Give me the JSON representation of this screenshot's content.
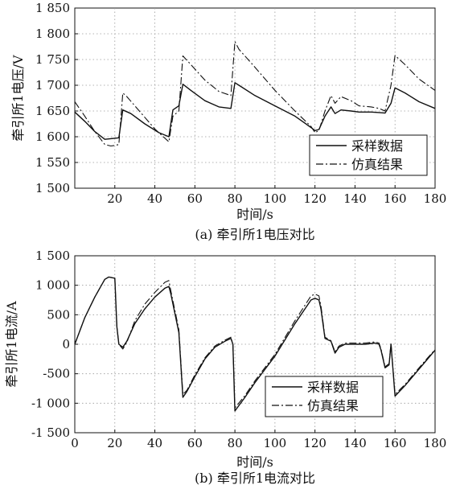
{
  "chart_data": [
    {
      "type": "line",
      "caption": "(a) 牵引所1电压对比",
      "xlabel": "时间/s",
      "ylabel": "牵引所1电压/V",
      "xlim": [
        0,
        180
      ],
      "ylim": [
        1500,
        1850
      ],
      "xticks": [
        "20",
        "40",
        "60",
        "80",
        "100",
        "120",
        "140",
        "160",
        "180"
      ],
      "xtick_values": [
        20,
        40,
        60,
        80,
        100,
        120,
        140,
        160,
        180
      ],
      "yticks": [
        "1 500",
        "1 550",
        "1 600",
        "1 650",
        "1 700",
        "1 750",
        "1 800",
        "1 850"
      ],
      "ytick_values": [
        1500,
        1550,
        1600,
        1650,
        1700,
        1750,
        1800,
        1850
      ],
      "grid": true,
      "legend_position": "bottom-right",
      "series": [
        {
          "name": "采样数据",
          "style": "solid",
          "x": [
            0,
            5,
            10,
            15,
            20,
            22,
            24,
            28,
            35,
            42,
            47,
            49,
            52,
            54,
            58,
            65,
            72,
            78,
            80,
            82,
            90,
            100,
            110,
            118,
            120,
            122,
            125,
            128,
            130,
            133,
            138,
            142,
            148,
            152,
            155,
            158,
            160,
            165,
            172,
            180
          ],
          "y": [
            1648,
            1630,
            1610,
            1595,
            1597,
            1598,
            1652,
            1645,
            1625,
            1608,
            1600,
            1652,
            1660,
            1702,
            1690,
            1670,
            1658,
            1655,
            1705,
            1700,
            1680,
            1660,
            1640,
            1618,
            1612,
            1614,
            1640,
            1658,
            1645,
            1652,
            1650,
            1648,
            1648,
            1647,
            1646,
            1665,
            1695,
            1685,
            1668,
            1655
          ]
        },
        {
          "name": "仿真结果",
          "style": "dashdot",
          "x": [
            0,
            5,
            10,
            15,
            18,
            20,
            22,
            24,
            26,
            30,
            40,
            47,
            49,
            52,
            54,
            58,
            65,
            72,
            78,
            80,
            82,
            90,
            100,
            110,
            118,
            120,
            122,
            125,
            128,
            130,
            133,
            138,
            142,
            148,
            152,
            155,
            158,
            160,
            165,
            172,
            180
          ],
          "y": [
            1668,
            1640,
            1610,
            1585,
            1582,
            1583,
            1585,
            1685,
            1678,
            1660,
            1615,
            1590,
            1640,
            1650,
            1757,
            1740,
            1710,
            1688,
            1680,
            1785,
            1770,
            1735,
            1690,
            1650,
            1620,
            1608,
            1612,
            1650,
            1680,
            1665,
            1678,
            1670,
            1660,
            1658,
            1655,
            1650,
            1700,
            1758,
            1740,
            1712,
            1690
          ]
        }
      ]
    },
    {
      "type": "line",
      "caption": "(b) 牵引所1电流对比",
      "xlabel": "时间/s",
      "ylabel": "牵引所1电流/A",
      "xlim": [
        0,
        180
      ],
      "ylim": [
        -1500,
        1500
      ],
      "xticks": [
        "0",
        "20",
        "40",
        "60",
        "80",
        "100",
        "120",
        "140",
        "160",
        "180"
      ],
      "xtick_values": [
        0,
        20,
        40,
        60,
        80,
        100,
        120,
        140,
        160,
        180
      ],
      "yticks": [
        "-1 500",
        "-1 000",
        "-500",
        "0",
        "500",
        "1 000",
        "1 500"
      ],
      "ytick_values": [
        -1500,
        -1000,
        -500,
        0,
        500,
        1000,
        1500
      ],
      "grid": true,
      "legend_position": "bottom-right",
      "series": [
        {
          "name": "采样数据",
          "style": "solid",
          "x": [
            0,
            5,
            10,
            15,
            17,
            20,
            21,
            22,
            24,
            26,
            30,
            35,
            40,
            45,
            47,
            48,
            52,
            54,
            56,
            60,
            65,
            70,
            75,
            78,
            79,
            80,
            85,
            90,
            100,
            110,
            118,
            120,
            122,
            123,
            125,
            128,
            130,
            132,
            135,
            140,
            145,
            150,
            152,
            153,
            155,
            157,
            158,
            160,
            165,
            170,
            175,
            180
          ],
          "y": [
            0,
            450,
            800,
            1100,
            1140,
            1120,
            300,
            0,
            -50,
            50,
            350,
            600,
            800,
            950,
            980,
            850,
            200,
            -900,
            -800,
            -550,
            -250,
            -50,
            50,
            100,
            0,
            -1130,
            -900,
            -650,
            -200,
            350,
            750,
            780,
            750,
            600,
            100,
            50,
            -150,
            -50,
            0,
            0,
            0,
            20,
            0,
            -100,
            -400,
            -350,
            0,
            -880,
            -700,
            -500,
            -300,
            -100
          ]
        },
        {
          "name": "仿真结果",
          "style": "dashdot",
          "x": [
            0,
            5,
            10,
            15,
            17,
            20,
            21,
            22,
            24,
            26,
            30,
            35,
            40,
            45,
            47,
            48,
            52,
            54,
            56,
            60,
            65,
            70,
            75,
            78,
            79,
            80,
            85,
            90,
            100,
            110,
            118,
            120,
            122,
            123,
            125,
            128,
            130,
            132,
            135,
            140,
            145,
            150,
            152,
            153,
            155,
            157,
            158,
            160,
            165,
            170,
            175,
            180
          ],
          "y": [
            0,
            450,
            800,
            1100,
            1140,
            1120,
            300,
            0,
            -80,
            30,
            400,
            680,
            880,
            1050,
            1080,
            900,
            250,
            -850,
            -780,
            -520,
            -230,
            -30,
            70,
            120,
            0,
            -1080,
            -870,
            -620,
            -170,
            400,
            820,
            850,
            820,
            650,
            120,
            60,
            -130,
            -30,
            20,
            20,
            20,
            40,
            20,
            -80,
            -380,
            -330,
            20,
            -850,
            -680,
            -480,
            -280,
            -90
          ]
        }
      ]
    }
  ]
}
